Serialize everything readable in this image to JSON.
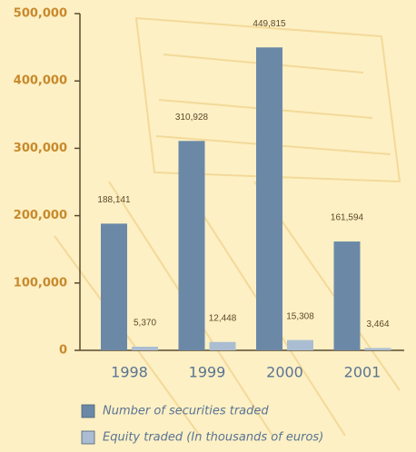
{
  "chart_data": {
    "type": "bar",
    "categories": [
      "1998",
      "1999",
      "2000",
      "2001"
    ],
    "series": [
      {
        "name": "Number of securities traded",
        "color": "#6b89a7",
        "values": [
          188141,
          310928,
          449815,
          161594
        ],
        "value_labels": [
          "188,141",
          "310,928",
          "449,815",
          "161,594"
        ]
      },
      {
        "name": "Equity traded (In thousands of euros)",
        "color": "#aabdd2",
        "values": [
          5370,
          12448,
          15308,
          3464
        ],
        "value_labels": [
          "5,370",
          "12,448",
          "15,308",
          "3,464"
        ]
      }
    ],
    "ylim": [
      0,
      500000
    ],
    "yticks": [
      0,
      {
        "value": 100000,
        "label": "100,000"
      },
      {
        "value": 200000,
        "label": "200,000"
      },
      {
        "value": 300000,
        "label": "300,000"
      },
      {
        "value": 400000,
        "label": "400,000"
      },
      {
        "value": 500000,
        "label": "500,000"
      }
    ]
  }
}
